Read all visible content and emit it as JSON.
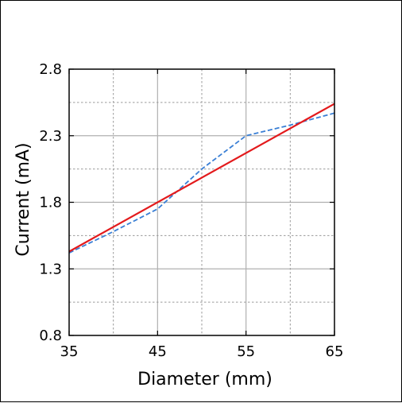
{
  "chart_data": {
    "type": "line",
    "title": "",
    "xlabel": "Diameter (mm)",
    "ylabel": "Current (mA)",
    "xlim": [
      35,
      65
    ],
    "ylim": [
      0.8,
      2.8
    ],
    "x_ticks": [
      35,
      45,
      55,
      65
    ],
    "x_tick_labels": [
      "35",
      "45",
      "55",
      "65"
    ],
    "x_minor_gridlines": [
      40,
      50,
      60
    ],
    "y_ticks": [
      0.8,
      1.3,
      1.8,
      2.3,
      2.8
    ],
    "y_tick_labels": [
      "0.8",
      "1.3",
      "1.8",
      "2.3",
      "2.8"
    ],
    "y_minor_gridlines": [
      1.05,
      1.55,
      2.05,
      2.55
    ],
    "grid": true,
    "legend": "none",
    "series": [
      {
        "style": "dashed",
        "color": "#3a7fd5",
        "x": [
          35,
          40,
          45,
          50,
          55,
          60,
          65
        ],
        "y": [
          1.42,
          1.58,
          1.75,
          2.05,
          2.3,
          2.38,
          2.47
        ]
      },
      {
        "style": "solid",
        "color": "#e31a1c",
        "x": [
          35,
          65
        ],
        "y": [
          1.43,
          2.54
        ]
      }
    ]
  }
}
